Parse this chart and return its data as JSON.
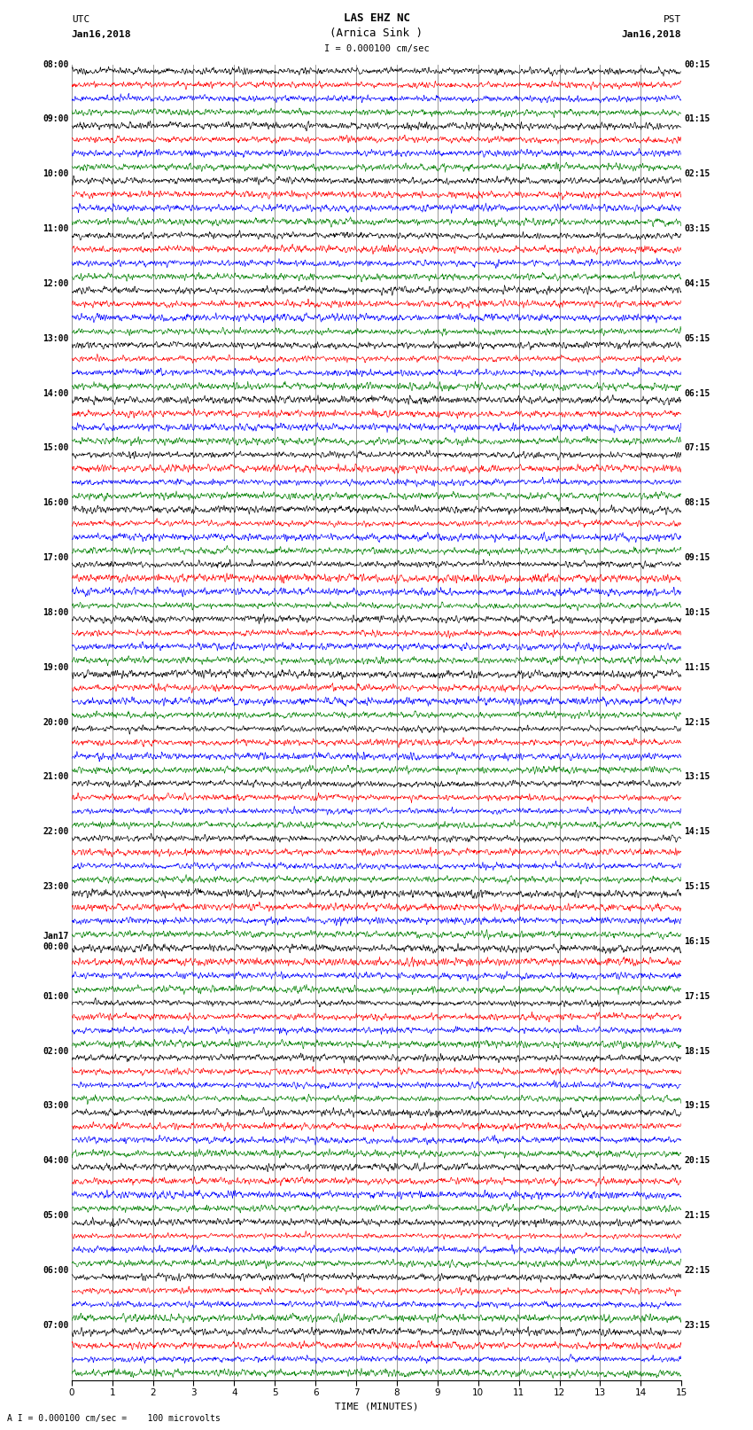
{
  "title_line1": "LAS EHZ NC",
  "title_line2": "(Arnica Sink )",
  "scale_text": "I = 0.000100 cm/sec",
  "left_label_top": "UTC",
  "left_label_date": "Jan16,2018",
  "right_label_top": "PST",
  "right_label_date": "Jan16,2018",
  "bottom_label": "TIME (MINUTES)",
  "bottom_note": "A I = 0.000100 cm/sec =    100 microvolts",
  "xlim": [
    0,
    15
  ],
  "xticks": [
    0,
    1,
    2,
    3,
    4,
    5,
    6,
    7,
    8,
    9,
    10,
    11,
    12,
    13,
    14,
    15
  ],
  "left_times": [
    "08:00",
    "09:00",
    "10:00",
    "11:00",
    "12:00",
    "13:00",
    "14:00",
    "15:00",
    "16:00",
    "17:00",
    "18:00",
    "19:00",
    "20:00",
    "21:00",
    "22:00",
    "23:00",
    "Jan17\n00:00",
    "01:00",
    "02:00",
    "03:00",
    "04:00",
    "05:00",
    "06:00",
    "07:00"
  ],
  "right_times": [
    "00:15",
    "01:15",
    "02:15",
    "03:15",
    "04:15",
    "05:15",
    "06:15",
    "07:15",
    "08:15",
    "09:15",
    "10:15",
    "11:15",
    "12:15",
    "13:15",
    "14:15",
    "15:15",
    "16:15",
    "17:15",
    "18:15",
    "19:15",
    "20:15",
    "21:15",
    "22:15",
    "23:15"
  ],
  "n_hours": 24,
  "traces_per_hour": 4,
  "colors": [
    "black",
    "red",
    "blue",
    "green"
  ],
  "noise_amplitude": 0.18,
  "background_color": "white",
  "grid_color": "#888888",
  "grid_linewidth": 0.6,
  "trace_linewidth": 0.45,
  "fig_width": 8.5,
  "fig_height": 16.13,
  "dpi": 100
}
